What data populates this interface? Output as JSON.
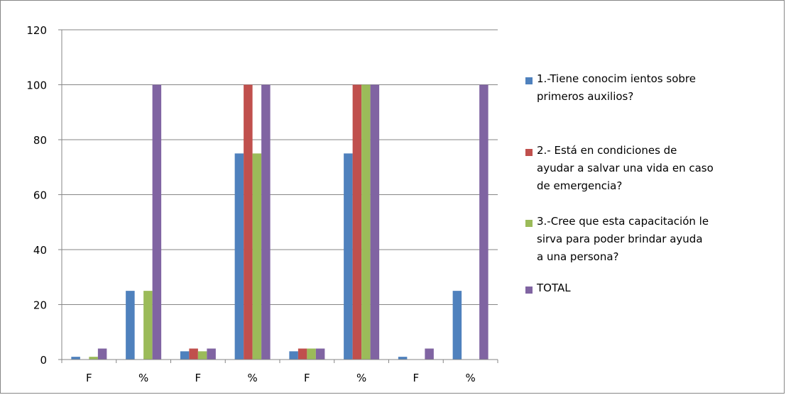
{
  "chart_data": {
    "type": "bar",
    "categories": [
      "F",
      "%",
      "F",
      "%",
      "F",
      "%",
      "F",
      "%"
    ],
    "ylim": [
      0,
      120
    ],
    "yticks": [
      0,
      20,
      40,
      60,
      80,
      100,
      120
    ],
    "grid": true,
    "legend_position": "right",
    "series": [
      {
        "name": "1.-Tiene conocim ientos sobre primeros  auxilios?",
        "color": "#4F81BD",
        "values": [
          1,
          25,
          3,
          75,
          3,
          75,
          1,
          25
        ]
      },
      {
        "name": "2.- Está en condiciones de ayudar a salvar una vida en caso de emergencia?",
        "color": "#C0504D",
        "values": [
          0,
          0,
          4,
          100,
          4,
          100,
          0,
          0
        ]
      },
      {
        "name": "3.-Cree que esta capacitación le sirva para poder brindar ayuda a una persona?",
        "color": "#9BBB59",
        "values": [
          1,
          25,
          3,
          75,
          4,
          100,
          0,
          0
        ]
      },
      {
        "name": "TOTAL",
        "color": "#8064A2",
        "values": [
          4,
          100,
          4,
          100,
          4,
          100,
          4,
          100
        ]
      }
    ]
  },
  "legend": {
    "items": [
      {
        "lines": [
          "1.-Tiene conocim ientos sobre",
          "primeros  auxilios?"
        ]
      },
      {
        "lines": [
          "2.- Está en condiciones de",
          "ayudar a salvar una vida en caso",
          "de emergencia?"
        ]
      },
      {
        "lines": [
          "3.-Cree que esta capacitación le",
          "sirva para poder brindar ayuda",
          "a una persona?"
        ]
      },
      {
        "lines": [
          "TOTAL"
        ]
      }
    ]
  }
}
